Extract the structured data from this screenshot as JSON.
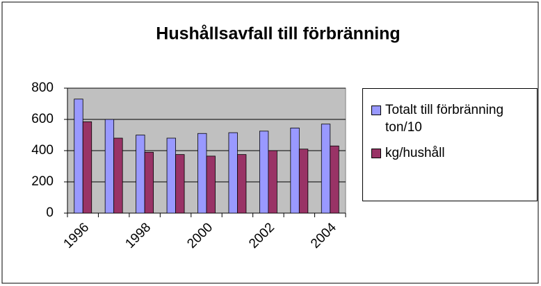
{
  "chart_data": {
    "type": "bar",
    "title": "Hushållsavfall till förbränning",
    "categories": [
      "1996",
      null,
      "1998",
      null,
      "2000",
      null,
      "2002",
      null,
      "2004"
    ],
    "series": [
      {
        "name": "Totalt till förbränning ton/10",
        "color": "#9999ff",
        "values": [
          730,
          600,
          500,
          480,
          510,
          515,
          525,
          545,
          570
        ]
      },
      {
        "name": "kg/hushåll",
        "color": "#993366",
        "values": [
          585,
          480,
          390,
          375,
          365,
          375,
          400,
          410,
          430
        ]
      }
    ],
    "ylim": [
      0,
      800
    ],
    "yticks": [
      0,
      200,
      400,
      600,
      800
    ],
    "grid": true,
    "legend": "right",
    "plot_background": "#c0c0c0"
  }
}
